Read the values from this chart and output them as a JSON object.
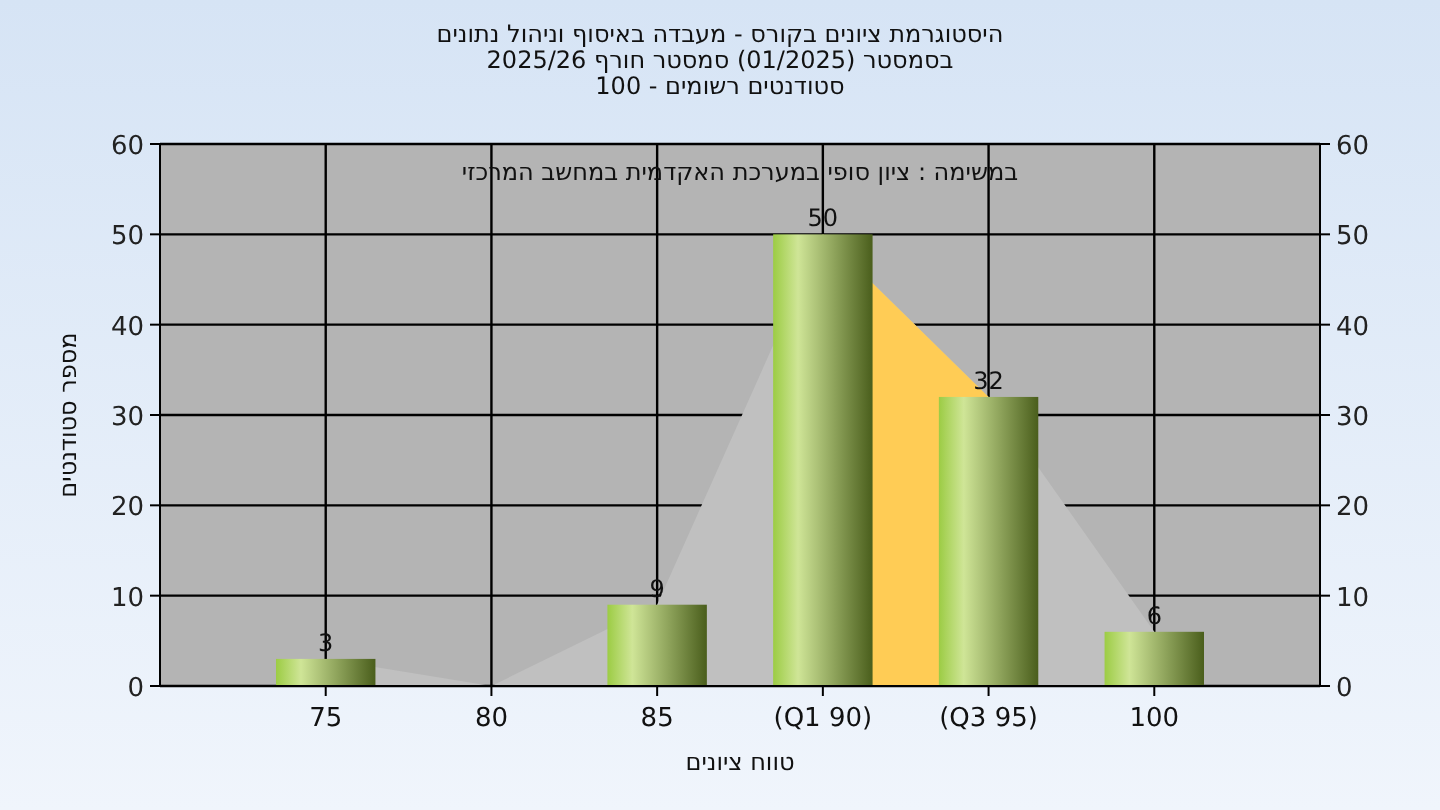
{
  "chart_data": {
    "type": "bar",
    "title": "היסטוגרמת ציונים בקורס - מעבדה באיסוף וניהול נתונים",
    "subtitle": "בסמסטר  (01/2025)  סמסטר חורף 2025/26\nסטודנטים רשומים - 100",
    "xlabel": "טווח ציונים",
    "ylabel": "מספר סטודנטים",
    "annotations": [
      "במשימה : ציון סופי במערכת האקדמית במחשב המרכזי"
    ],
    "categories": [
      "75",
      "80",
      "85",
      "(Q1 90)",
      "(Q3 95)",
      "100"
    ],
    "series": [
      {
        "type": "area",
        "color": "#c0c0c0",
        "values": [
          3,
          0,
          9,
          50,
          32,
          6
        ]
      },
      {
        "type": "area",
        "color": "#ffcc55",
        "values": [
          null,
          null,
          null,
          50,
          32,
          null
        ]
      },
      {
        "color": "#9ccc44",
        "values": [
          3,
          0,
          9,
          50,
          32,
          6
        ],
        "value_labels": [
          "3",
          null,
          "9",
          "50",
          "32",
          "6"
        ]
      }
    ],
    "ylim": [
      0,
      60
    ],
    "yticks": [
      0,
      10,
      20,
      30,
      40,
      50,
      60
    ],
    "y2lim": [
      0,
      60
    ],
    "y2ticks": [
      0,
      10,
      20,
      30,
      40,
      50,
      60
    ],
    "grid": true
  }
}
